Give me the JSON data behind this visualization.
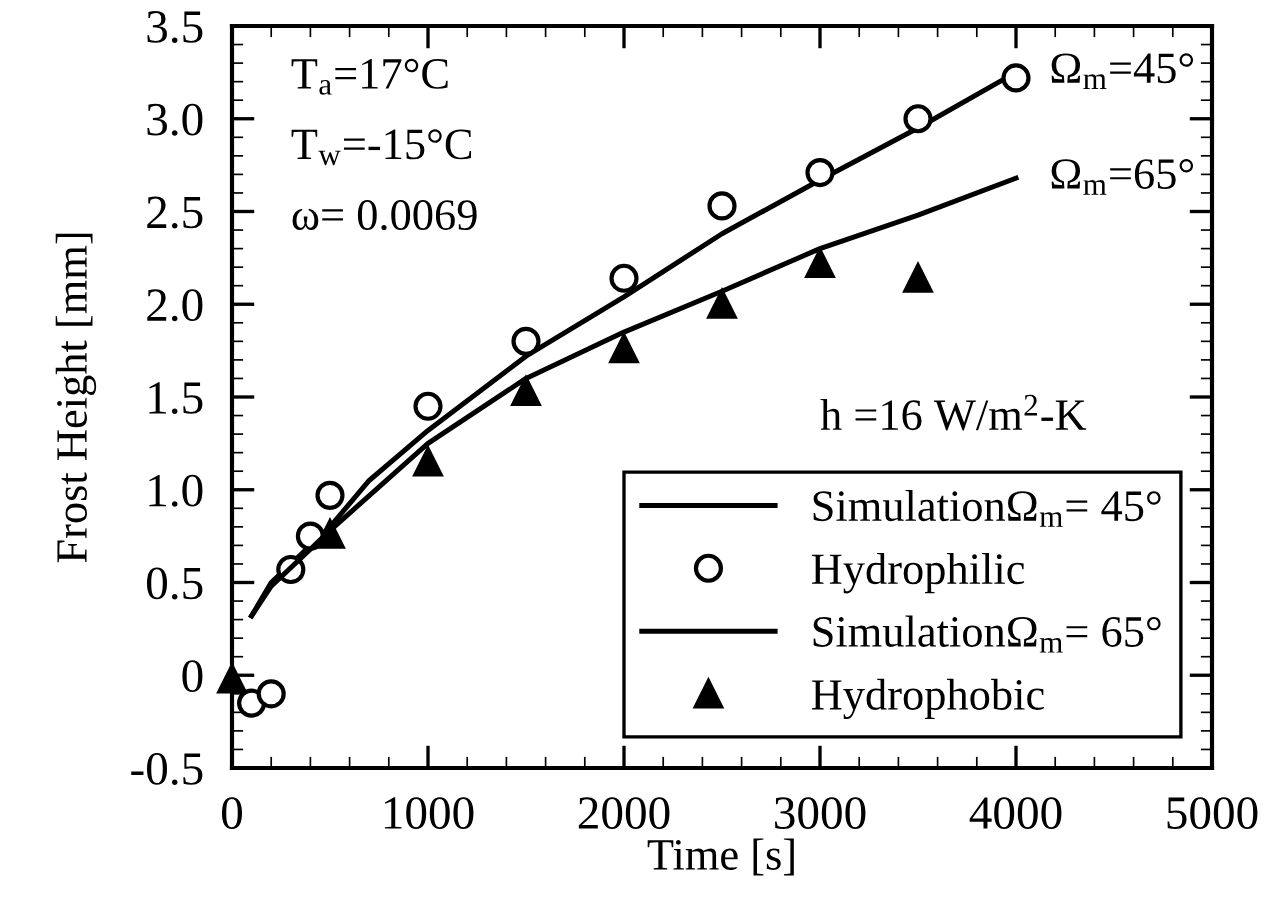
{
  "chart_data": {
    "type": "line",
    "xlabel": "Time [s]",
    "ylabel": "Frost Height [mm]",
    "xlim": [
      0,
      5000
    ],
    "ylim": [
      -0.5,
      3.5
    ],
    "xticks": [
      0,
      1000,
      2000,
      3000,
      4000,
      5000
    ],
    "yticks": [
      {
        "value": -0.5,
        "label": "-0.5"
      },
      0,
      {
        "value": 0.5,
        "label": "0.5"
      },
      {
        "value": 1.0,
        "label": "1.0"
      },
      {
        "value": 1.5,
        "label": "1.5"
      },
      {
        "value": 2.0,
        "label": "2.0"
      },
      {
        "value": 2.5,
        "label": "2.5"
      },
      {
        "value": 3.0,
        "label": "3.0"
      },
      {
        "value": 3.5,
        "label": "3.5"
      }
    ],
    "grid": false,
    "legend": "bottom right",
    "series": [
      {
        "name": "SimulationΩ$_{m}$= 45°",
        "color": "#000000",
        "marker": "none",
        "line_style": "solid",
        "x": [
          100,
          200,
          300,
          500,
          700,
          1000,
          1500,
          2000,
          2500,
          3000,
          3500,
          4000
        ],
        "values": [
          0.32,
          0.5,
          0.6,
          0.8,
          1.05,
          1.32,
          1.72,
          2.04,
          2.38,
          2.67,
          2.95,
          3.25
        ]
      },
      {
        "name": "Hydrophilic",
        "type": "scatter",
        "color": "#000000",
        "marker": "circle",
        "x": [
          100,
          200,
          300,
          400,
          500,
          1000,
          1500,
          2000,
          2500,
          3000,
          3500,
          4000
        ],
        "values": [
          -0.15,
          -0.1,
          0.57,
          0.75,
          0.97,
          1.45,
          1.8,
          2.14,
          2.53,
          2.71,
          3.0,
          3.22
        ]
      },
      {
        "name": "SimulationΩ$_{m}$= 65°",
        "color": "#000000",
        "marker": "none",
        "line_style": "solid",
        "x": [
          100,
          200,
          500,
          1000,
          1500,
          2000,
          2500,
          3000,
          3500,
          4000
        ],
        "values": [
          0.32,
          0.48,
          0.78,
          1.25,
          1.6,
          1.85,
          2.07,
          2.3,
          2.48,
          2.68
        ]
      },
      {
        "name": "Hydrophobic",
        "type": "scatter",
        "color": "#000000",
        "marker": "triangle",
        "x": [
          0,
          500,
          1000,
          1500,
          2000,
          2500,
          3000,
          3500
        ],
        "values": [
          -0.02,
          0.76,
          1.15,
          1.53,
          1.76,
          2.0,
          2.22,
          2.14
        ]
      }
    ],
    "annotations": [
      "T$_{a}$=17°C",
      "T$_{w}$=-15°C",
      "ω= 0.0069",
      "h =16 W/m$^{2}$-K",
      {
        "text": "Ω$_{m}$=45°",
        "x": 4000,
        "y": 3.25
      },
      {
        "text": "Ω$_{m}$=65°",
        "x": 4000,
        "y": 2.68
      }
    ]
  }
}
